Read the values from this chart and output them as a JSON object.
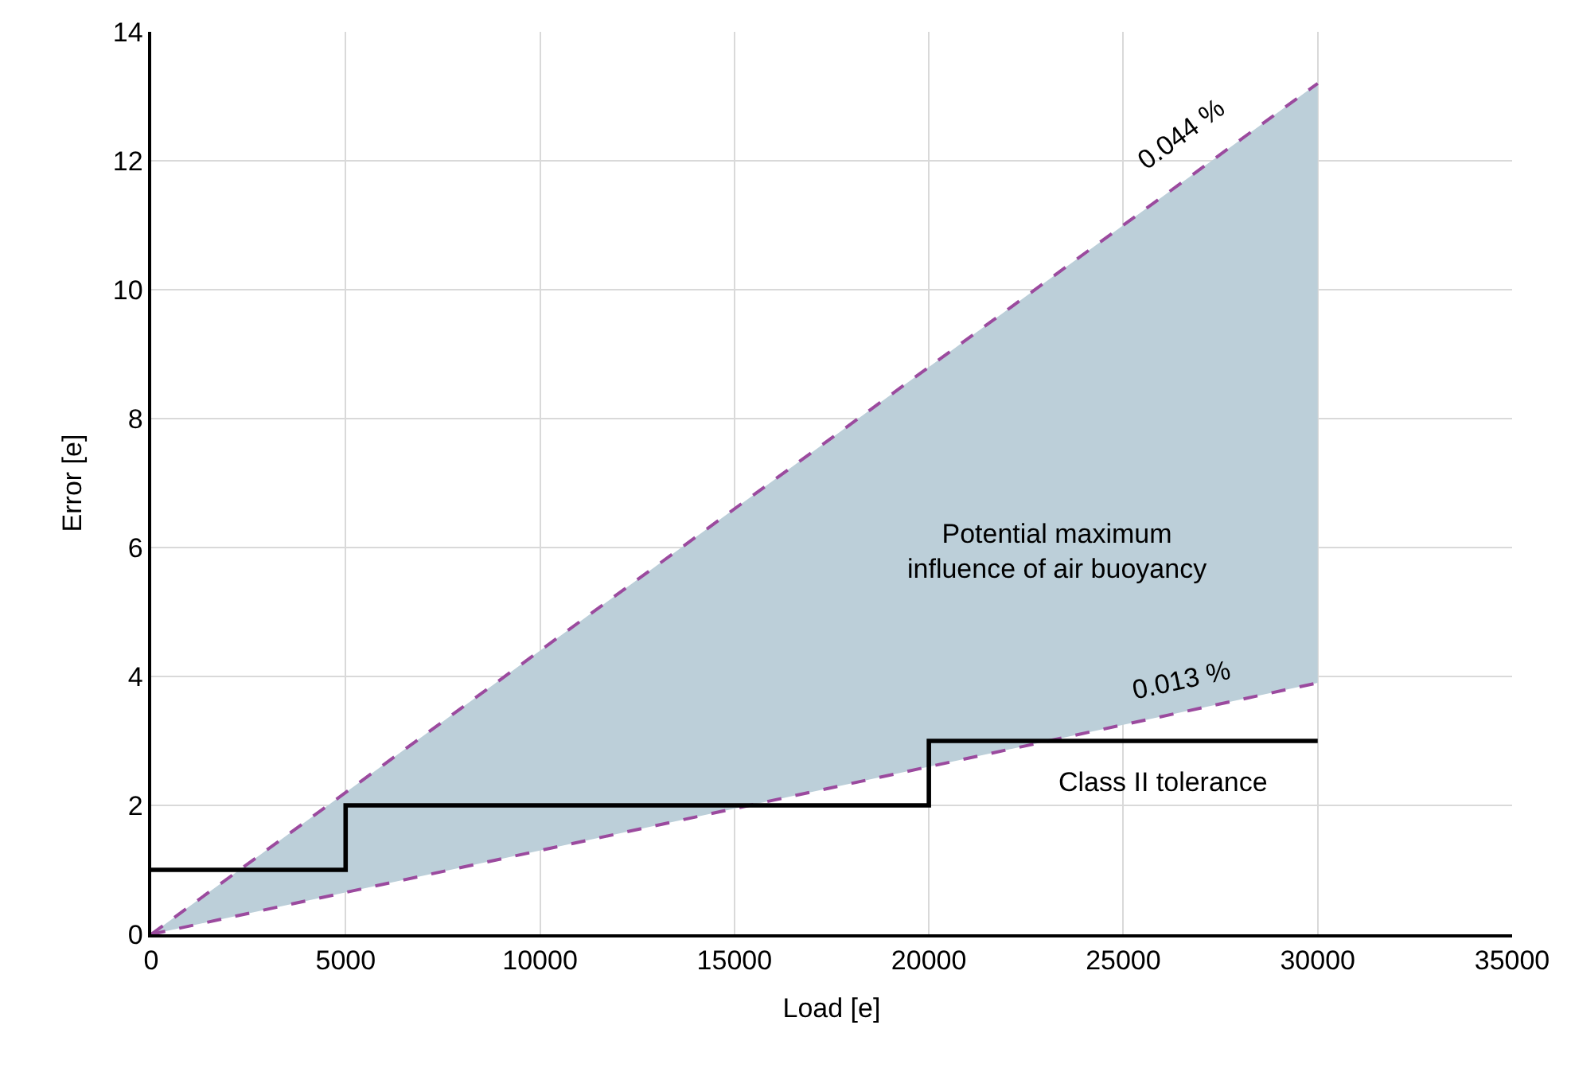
{
  "chart_data": {
    "type": "line",
    "xlabel": "Load [e]",
    "ylabel": "Error [e]",
    "xlim": [
      0,
      35000
    ],
    "xticks": [
      0,
      5000,
      10000,
      15000,
      20000,
      25000,
      30000,
      35000
    ],
    "ylim": [
      0,
      14
    ],
    "yticks": [
      0,
      2,
      4,
      6,
      8,
      10,
      12,
      14
    ],
    "grid": true,
    "legend": false,
    "series": [
      {
        "name": "0.044 %",
        "color": "#9b4a9e",
        "line_style": "dashed",
        "x": [
          0,
          30000
        ],
        "values": [
          0,
          13.2
        ]
      },
      {
        "name": "0.013 %",
        "color": "#9b4a9e",
        "line_style": "dashed",
        "x": [
          0,
          30000
        ],
        "values": [
          0,
          3.9
        ],
        "lower": [
          0,
          3.9
        ],
        "upper": [
          0,
          13.2
        ]
      },
      {
        "type": "step",
        "color": "#000000",
        "line_style": "solid",
        "x": [
          0,
          5000,
          20000,
          30000
        ],
        "values": [
          1,
          2,
          3,
          3
        ]
      }
    ],
    "annotations": [
      "Potential maximum\ninfluence of air buoyancy",
      "Class II tolerance"
    ]
  }
}
